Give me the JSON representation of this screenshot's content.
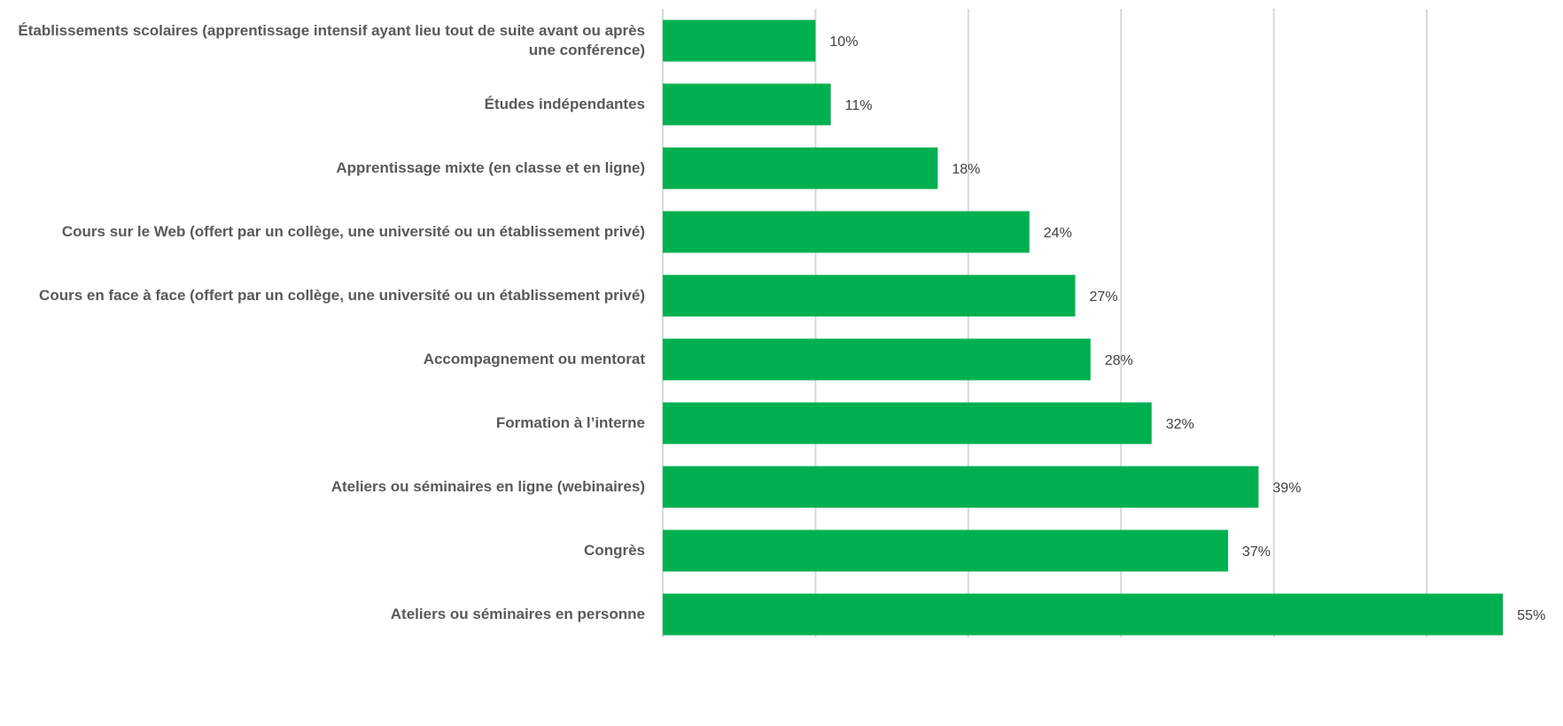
{
  "chart_data": {
    "type": "bar",
    "orientation": "horizontal",
    "title": "",
    "xlabel": "",
    "ylabel": "",
    "categories": [
      "Établissements scolaires (apprentissage intensif ayant lieu tout de suite avant ou après une conférence)",
      "Études indépendantes",
      "Apprentissage mixte (en classe et en ligne)",
      "Cours sur le Web (offert par un collège, une université ou un établissement privé)",
      "Cours en face à face (offert par un collège, une université ou un établissement privé)",
      "Accompagnement ou mentorat",
      "Formation à l’interne",
      "Ateliers ou séminaires en ligne (webinaires)",
      "Congrès",
      "Ateliers ou séminaires en personne"
    ],
    "values": [
      10,
      11,
      18,
      24,
      27,
      28,
      32,
      39,
      37,
      55
    ],
    "value_labels": [
      "10%",
      "11%",
      "18%",
      "24%",
      "27%",
      "28%",
      "32%",
      "39%",
      "37%",
      "55%"
    ],
    "xlim": [
      0,
      58
    ],
    "grid": true,
    "bar_color": "#00B050",
    "grid_color": "#D9D9D9"
  }
}
